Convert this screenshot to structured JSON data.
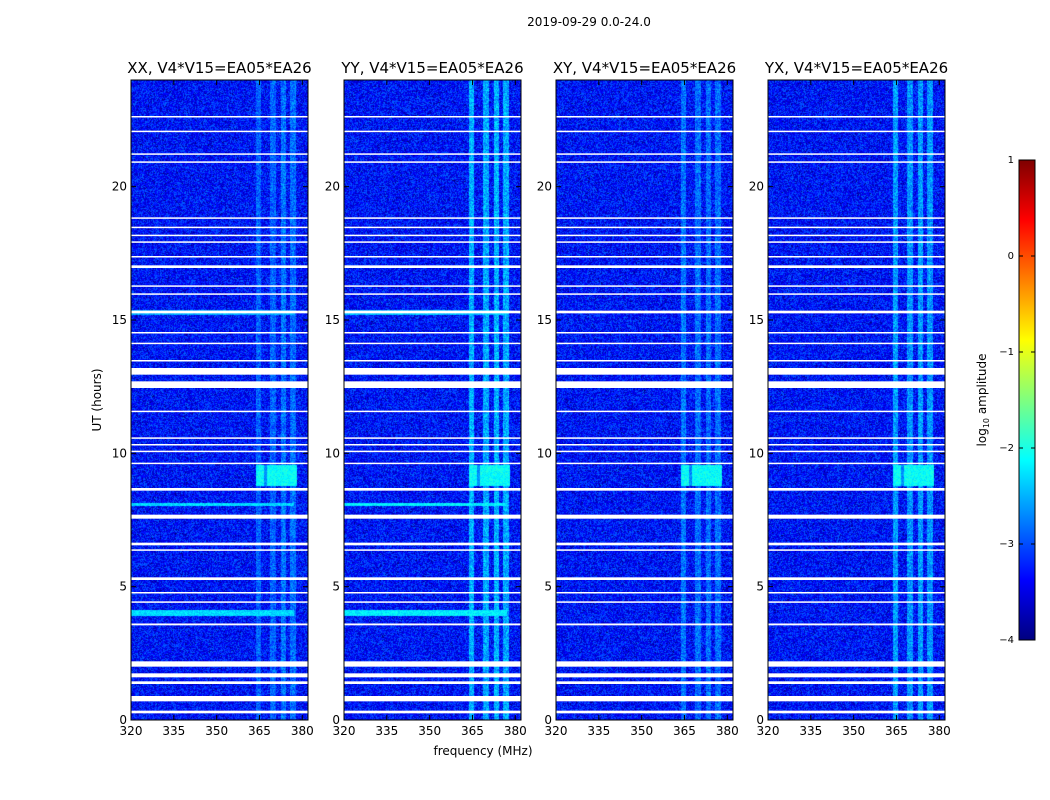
{
  "figure": {
    "suptitle": "2019-09-29 0.0-24.0",
    "xlabel": "frequency (MHz)",
    "ylabel": "UT (hours)"
  },
  "chart_data": {
    "type": "heatmap",
    "x": {
      "label": "frequency (MHz)",
      "range": [
        320,
        382
      ],
      "ticks": [
        320,
        335,
        350,
        365,
        380
      ],
      "tick_labels": [
        "320",
        "335",
        "350",
        "365",
        "380"
      ]
    },
    "y": {
      "label": "UT (hours)",
      "range": [
        0,
        24
      ],
      "ticks": [
        0,
        5,
        10,
        15,
        20
      ],
      "tick_labels": [
        "0",
        "5",
        "10",
        "15",
        "20"
      ]
    },
    "panels": [
      {
        "title": "XX, V4*V15=EA05*EA26",
        "pol": "XX",
        "show_ylabel": true
      },
      {
        "title": "YY, V4*V15=EA05*EA26",
        "pol": "YY",
        "show_ylabel": false
      },
      {
        "title": "XY, V4*V15=EA05*EA26",
        "pol": "XY",
        "show_ylabel": false
      },
      {
        "title": "YX, V4*V15=EA05*EA26",
        "pol": "YX",
        "show_ylabel": false
      }
    ],
    "flagged_time_bands_hours": [
      [
        0.25,
        0.35
      ],
      [
        0.7,
        0.9
      ],
      [
        1.35,
        1.45
      ],
      [
        1.6,
        1.75
      ],
      [
        2.0,
        2.2
      ],
      [
        3.55,
        3.62
      ],
      [
        4.4,
        4.45
      ],
      [
        4.75,
        4.8
      ],
      [
        5.25,
        5.35
      ],
      [
        6.35,
        6.4
      ],
      [
        6.55,
        6.65
      ],
      [
        7.55,
        7.7
      ],
      [
        8.6,
        8.7
      ],
      [
        9.6,
        9.65
      ],
      [
        10.05,
        10.1
      ],
      [
        10.3,
        10.35
      ],
      [
        10.55,
        10.6
      ],
      [
        11.55,
        11.6
      ],
      [
        12.45,
        12.7
      ],
      [
        12.95,
        13.2
      ],
      [
        13.45,
        13.5
      ],
      [
        14.1,
        14.15
      ],
      [
        14.5,
        14.55
      ],
      [
        15.25,
        15.35
      ],
      [
        15.95,
        16.0
      ],
      [
        16.25,
        16.3
      ],
      [
        16.95,
        17.05
      ],
      [
        17.35,
        17.4
      ],
      [
        17.9,
        17.95
      ],
      [
        18.15,
        18.2
      ],
      [
        18.45,
        18.5
      ],
      [
        18.8,
        18.85
      ],
      [
        20.9,
        20.95
      ],
      [
        21.2,
        21.25
      ],
      [
        22.05,
        22.1
      ],
      [
        22.6,
        22.65
      ]
    ],
    "bright_features": [
      {
        "panel": "all",
        "freq_mhz": [
          363.5,
          378
        ],
        "ut_hours": [
          8.8,
          9.6
        ],
        "log10_amplitude": -2.1,
        "note": "broadband burst"
      },
      {
        "panel": "XX,YY",
        "freq_mhz": [
          320,
          377
        ],
        "ut_hours": [
          3.9,
          4.15
        ],
        "log10_amplitude": -2.3,
        "note": "time band"
      },
      {
        "panel": "XX,YY",
        "freq_mhz": [
          320,
          377
        ],
        "ut_hours": [
          15.2,
          15.4
        ],
        "log10_amplitude": -2.5,
        "note": "time band"
      },
      {
        "panel": "XX,YY",
        "freq_mhz": [
          320,
          377
        ],
        "ut_hours": [
          8.05,
          8.15
        ],
        "log10_amplitude": -2.3,
        "note": "time band"
      }
    ],
    "rfi_channels_mhz": [
      {
        "freq": [
          363.5,
          365.5
        ],
        "XX": -2.9,
        "YY": -2.5,
        "XY": -2.8,
        "YX": -2.6
      },
      {
        "freq": [
          368.5,
          370.5
        ],
        "XX": -2.9,
        "YY": -2.55,
        "XY": -2.85,
        "YX": -2.65
      },
      {
        "freq": [
          372.5,
          374
        ],
        "XX": -2.8,
        "YY": -2.5,
        "XY": -2.85,
        "YX": -2.6
      },
      {
        "freq": [
          375.5,
          377.5
        ],
        "XX": -2.85,
        "YY": -2.55,
        "XY": -2.85,
        "YX": -2.65
      }
    ],
    "background_log10_amplitude": -3.3,
    "colorbar": {
      "label": "log10 amplitude",
      "label_base": "log",
      "label_sub": "10",
      "label_rest": " amplitude",
      "range": [
        -4,
        1
      ],
      "ticks": [
        1,
        0,
        -1,
        -2,
        -3,
        -4
      ],
      "tick_labels": [
        "1",
        "0",
        "−1",
        "−2",
        "−3",
        "−4"
      ],
      "colormap": "jet",
      "colormap_stops": [
        "#00007f",
        "#0000ff",
        "#007fff",
        "#00ffff",
        "#7fff7f",
        "#ffff00",
        "#ff7f00",
        "#ff0000",
        "#7f0000"
      ]
    }
  }
}
